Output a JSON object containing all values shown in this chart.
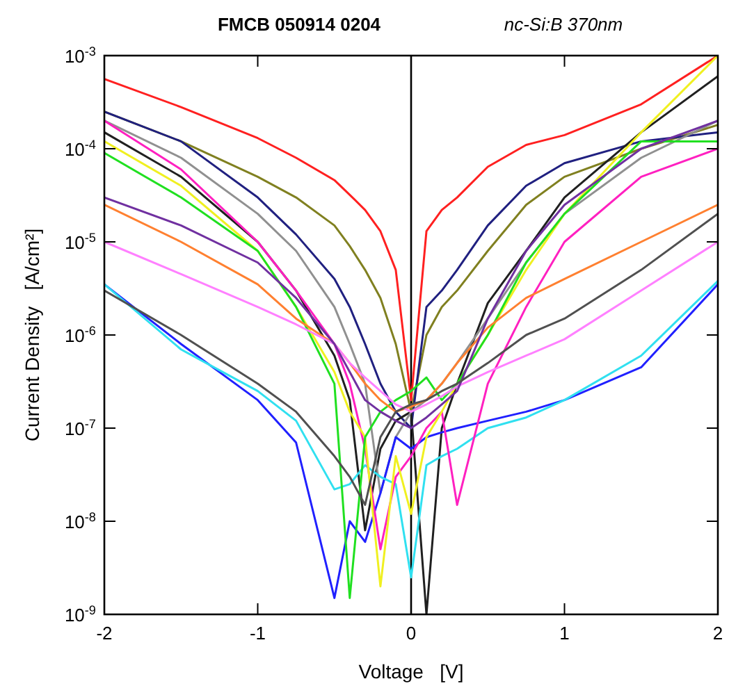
{
  "chart_data": {
    "type": "line",
    "title": "FMCB 050914 0204",
    "subtitle": "nc-Si:B 370nm",
    "xlabel": "Voltage   [V]",
    "ylabel": "Current Density   [A/cm²]",
    "log": "y",
    "grid": false,
    "marker": "none",
    "line_style": "solid",
    "xlim": [
      -2,
      2
    ],
    "xticks": [
      -2,
      -1,
      0,
      1,
      2
    ],
    "ylim": [
      1e-09,
      0.001
    ],
    "yticks": [
      {
        "value": 0.001,
        "label": "10$^{-3}$"
      },
      {
        "value": 0.0001,
        "label": "10$^{-4}$"
      },
      {
        "value": 1e-05,
        "label": "10$^{-5}$"
      },
      {
        "value": 1e-06,
        "label": "10$^{-6}$"
      },
      {
        "value": 1e-07,
        "label": "10$^{-7}$"
      },
      {
        "value": 1e-08,
        "label": "10$^{-8}$"
      },
      {
        "value": 1e-09,
        "label": "10$^{-9}$"
      }
    ],
    "ref_lines": [
      {
        "axis": "x",
        "value": 0,
        "color": "#000000"
      }
    ],
    "x": [
      -2,
      -1.5,
      -1,
      -0.75,
      -0.5,
      -0.4,
      -0.3,
      -0.2,
      -0.1,
      0,
      0.1,
      0.2,
      0.3,
      0.5,
      0.75,
      1,
      1.5,
      2
    ],
    "series": [
      {
        "color": "#ff2020",
        "values": [
          0.00056,
          0.00028,
          0.00013,
          8e-05,
          4.6e-05,
          3.2e-05,
          2.2e-05,
          1.3e-05,
          5e-06,
          2e-07,
          1.3e-05,
          2.2e-05,
          3e-05,
          6.4e-05,
          0.00011,
          0.00014,
          0.0003,
          0.001
        ]
      },
      {
        "color": "#808020",
        "values": [
          0.00025,
          0.00012,
          5e-05,
          3e-05,
          1.5e-05,
          9e-06,
          5e-06,
          2.5e-06,
          8e-07,
          1.5e-07,
          1e-06,
          2e-06,
          3e-06,
          8e-06,
          2.5e-05,
          5e-05,
          0.0001,
          0.00018
        ]
      },
      {
        "color": "#202080",
        "values": [
          0.00025,
          0.00012,
          3e-05,
          1.2e-05,
          4e-06,
          2e-06,
          8e-07,
          3e-07,
          1.5e-07,
          1e-07,
          2e-06,
          3e-06,
          5e-06,
          1.5e-05,
          4e-05,
          7e-05,
          0.00012,
          0.00015
        ]
      },
      {
        "color": "#202020",
        "values": [
          0.00015,
          5e-05,
          1e-05,
          3e-06,
          6e-07,
          2e-07,
          8e-09,
          6e-08,
          1.2e-07,
          1.5e-07,
          1e-09,
          1e-07,
          3e-07,
          2.2e-06,
          8e-06,
          3e-05,
          0.00015,
          0.0006
        ]
      },
      {
        "color": "#909090",
        "values": [
          0.0002,
          8e-05,
          2e-05,
          8e-06,
          2e-06,
          8e-07,
          3e-07,
          2e-08,
          8e-08,
          1.5e-07,
          2e-07,
          3e-07,
          5e-07,
          1.5e-06,
          6e-06,
          2e-05,
          8e-05,
          0.0002
        ]
      },
      {
        "color": "#2020ff",
        "values": [
          3.5e-06,
          8e-07,
          2e-07,
          7e-08,
          1.5e-09,
          1e-08,
          6e-09,
          2e-08,
          8e-08,
          6e-08,
          8e-08,
          9e-08,
          1e-07,
          1.2e-07,
          1.5e-07,
          2e-07,
          4.5e-07,
          3.5e-06
        ]
      },
      {
        "color": "#30e0f0",
        "values": [
          3.5e-06,
          7e-07,
          2.5e-07,
          1.2e-07,
          2.2e-08,
          2.5e-08,
          4e-08,
          3e-08,
          2.5e-08,
          2.5e-09,
          4e-08,
          5e-08,
          6e-08,
          1e-07,
          1.3e-07,
          2e-07,
          6e-07,
          3.8e-06
        ]
      },
      {
        "color": "#ff20c0",
        "values": [
          0.0002,
          6e-05,
          1e-05,
          3e-06,
          8e-07,
          3e-07,
          6e-08,
          5e-09,
          3e-08,
          5e-08,
          1e-07,
          1.5e-07,
          1.5e-08,
          3e-07,
          2e-06,
          1e-05,
          5e-05,
          0.0001
        ]
      },
      {
        "color": "#f0f020",
        "values": [
          0.00012,
          4e-05,
          8e-06,
          2e-06,
          4e-07,
          1.5e-07,
          8e-08,
          2e-09,
          5e-08,
          1.2e-08,
          8e-08,
          1.5e-07,
          3e-07,
          1e-06,
          5e-06,
          2e-05,
          0.00015,
          0.001
        ]
      },
      {
        "color": "#20e020",
        "values": [
          9e-05,
          3e-05,
          8e-06,
          2e-06,
          3e-07,
          1.5e-09,
          8e-08,
          1.5e-07,
          2e-07,
          2.5e-07,
          3.5e-07,
          2e-07,
          3e-07,
          1e-06,
          6e-06,
          2e-05,
          0.00012,
          0.00012
        ]
      },
      {
        "color": "#ff8030",
        "values": [
          2.5e-05,
          1e-05,
          3.5e-06,
          1.5e-06,
          8e-07,
          5e-07,
          3e-07,
          2e-07,
          1.5e-07,
          1.7e-07,
          2e-07,
          3e-07,
          5e-07,
          1.2e-06,
          2.5e-06,
          4e-06,
          1e-05,
          2.5e-05
        ]
      },
      {
        "color": "#ff80ff",
        "values": [
          1e-05,
          4.5e-06,
          2e-06,
          1.3e-06,
          8e-07,
          5e-07,
          3.5e-07,
          2.5e-07,
          1.8e-07,
          1.5e-07,
          1.8e-07,
          2.2e-07,
          2.8e-07,
          4e-07,
          6e-07,
          9e-07,
          3e-06,
          1e-05
        ]
      },
      {
        "color": "#7030a0",
        "values": [
          3e-05,
          1.5e-05,
          6e-06,
          2.5e-06,
          8e-07,
          4e-07,
          2e-07,
          1.5e-07,
          1.2e-07,
          1e-07,
          1.3e-07,
          1.8e-07,
          2.5e-07,
          1.5e-06,
          8e-06,
          2.5e-05,
          0.0001,
          0.0002
        ]
      },
      {
        "color": "#505050",
        "values": [
          3e-06,
          1e-06,
          3e-07,
          1.5e-07,
          5e-08,
          3e-08,
          1.5e-08,
          8e-08,
          1.5e-07,
          1.8e-07,
          2e-07,
          2.5e-07,
          3e-07,
          5e-07,
          1e-06,
          1.5e-06,
          5e-06,
          2e-05
        ]
      }
    ]
  }
}
